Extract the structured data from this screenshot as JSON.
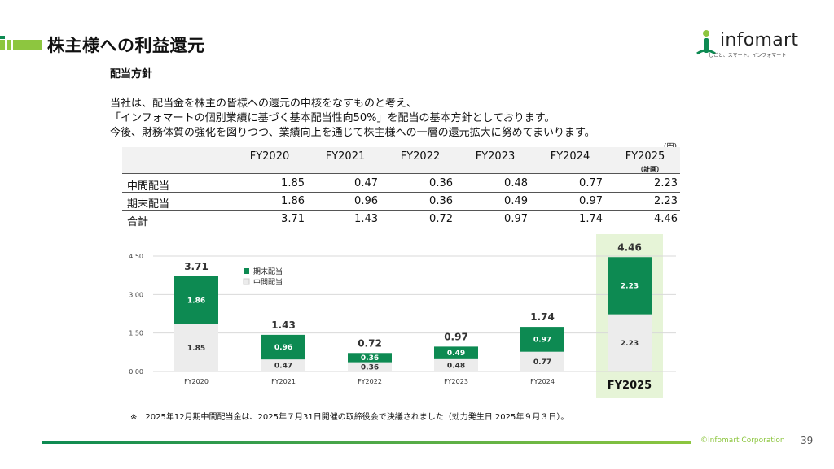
{
  "header": {
    "title": "株主様への利益還元",
    "logo_text": "infomart",
    "logo_tagline": "しごと、スマート。インフォマート"
  },
  "section": {
    "heading": "配当方針",
    "lines": [
      "当社は、配当金を株主の皆様への還元の中核をなすものと考え、",
      "「インフォマートの個別業績に基づく基本配当性向50%」を配当の基本方針としております。",
      "今後、財務体質の強化を図りつつ、業績向上を通じて株主様への一層の還元拡大に努めてまいります。"
    ]
  },
  "table": {
    "unit": "(円)",
    "columns": [
      "FY2020",
      "FY2021",
      "FY2022",
      "FY2023",
      "FY2024",
      "FY2025"
    ],
    "plan_note": "（計画）",
    "rows": [
      {
        "label": "中間配当",
        "values": [
          "1.85",
          "0.47",
          "0.36",
          "0.48",
          "0.77",
          "2.23"
        ]
      },
      {
        "label": "期末配当",
        "values": [
          "1.86",
          "0.96",
          "0.36",
          "0.49",
          "0.97",
          "2.23"
        ]
      },
      {
        "label": "合計",
        "values": [
          "3.71",
          "1.43",
          "0.72",
          "0.97",
          "1.74",
          "4.46"
        ]
      }
    ]
  },
  "chart_data": {
    "type": "bar",
    "stacked": true,
    "categories": [
      "FY2020",
      "FY2021",
      "FY2022",
      "FY2023",
      "FY2024",
      "FY2025"
    ],
    "series": [
      {
        "name": "中間配当",
        "values": [
          1.85,
          0.47,
          0.36,
          0.48,
          0.77,
          2.23
        ],
        "color": "#ececec"
      },
      {
        "name": "期末配当",
        "values": [
          1.86,
          0.96,
          0.36,
          0.49,
          0.97,
          2.23
        ],
        "color": "#0d8a52"
      }
    ],
    "totals": [
      3.71,
      1.43,
      0.72,
      0.97,
      1.74,
      4.46
    ],
    "yticks": [
      "0.00",
      "1.50",
      "3.00",
      "4.50"
    ],
    "ylim": [
      0,
      4.5
    ],
    "grid": true,
    "legend_position": "top-left",
    "highlight_category": "FY2025",
    "highlight_color": "#e6f4d7"
  },
  "footnote": "※　2025年12月期中間配当金は、2025年７月31日開催の取締役会で決議されました（効力発生日 2025年９月３日）。",
  "footer": {
    "copyright": "©Infomart Corporation",
    "page_number": "39"
  },
  "colors": {
    "brand_green": "#0d8a52",
    "light_green": "#8dc63f"
  }
}
